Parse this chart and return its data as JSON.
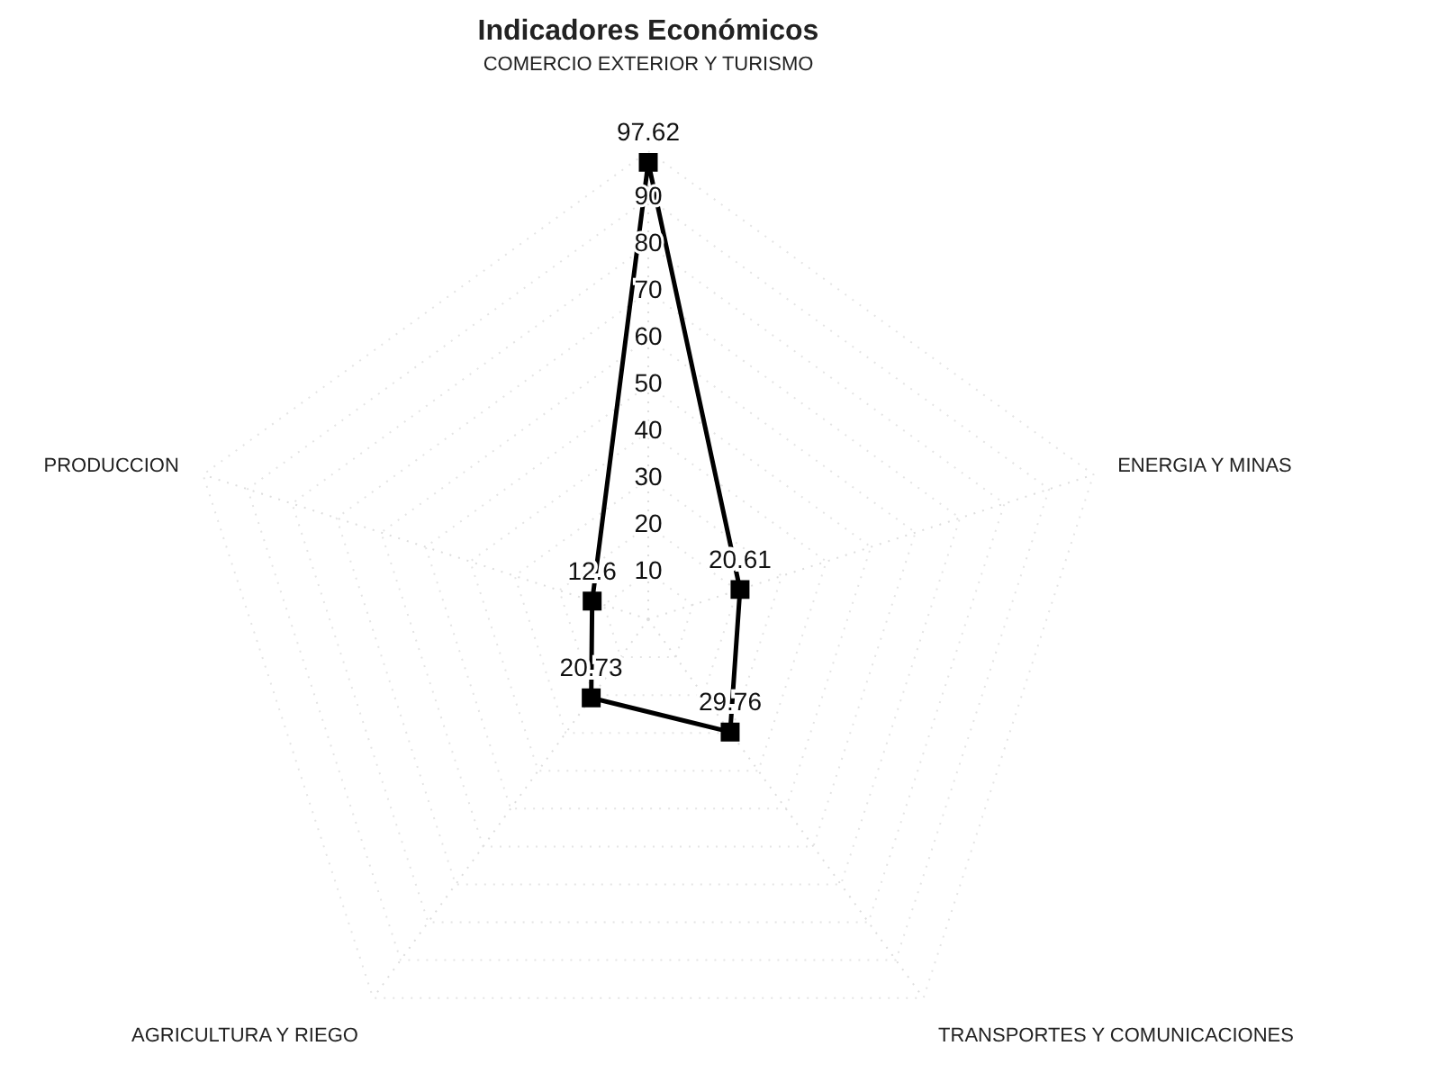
{
  "chart_data": {
    "type": "radar",
    "title": "Indicadores Económicos",
    "categories": [
      "COMERCIO EXTERIOR Y TURISMO",
      "ENERGIA Y MINAS",
      "TRANSPORTES Y COMUNICACIONES",
      "AGRICULTURA Y RIEGO",
      "PRODUCCION"
    ],
    "series": [
      {
        "color": "#000000",
        "values": [
          97.62,
          20.61,
          29.76,
          20.73,
          12.6
        ]
      }
    ],
    "ylim": [
      0,
      100
    ],
    "yticks": [
      10,
      20,
      30,
      40,
      50,
      60,
      70,
      80,
      90
    ],
    "grid": true,
    "marker": "square",
    "line_style": "solid",
    "data_labels": true
  }
}
